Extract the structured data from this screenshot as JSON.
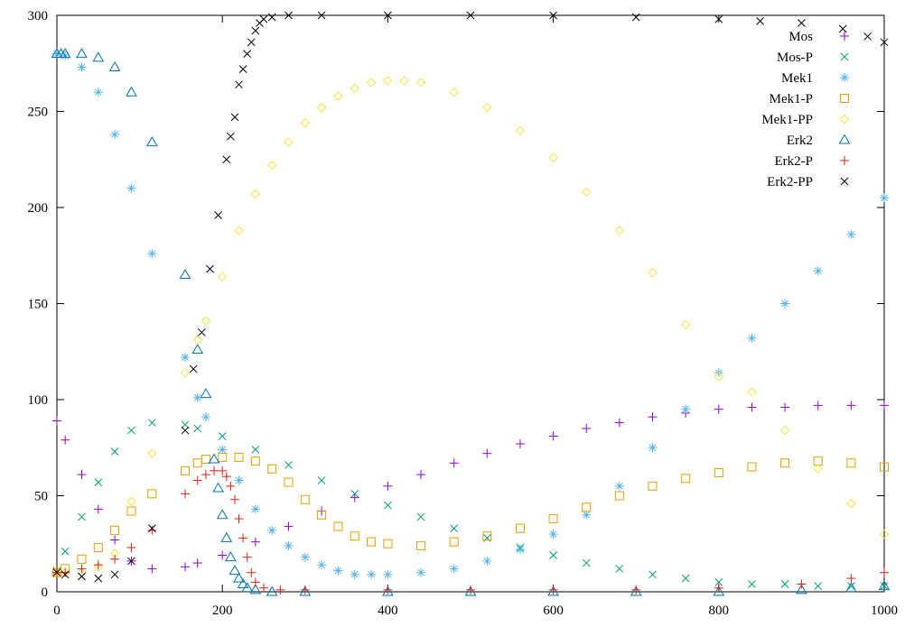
{
  "chart_data": {
    "type": "scatter",
    "title": "",
    "xlabel": "",
    "ylabel": "",
    "xlim": [
      0,
      1000
    ],
    "ylim": [
      0,
      300
    ],
    "grid": false,
    "legend_position": "top-right",
    "x_ticks": [
      0,
      200,
      400,
      600,
      800,
      1000
    ],
    "y_ticks": [
      0,
      50,
      100,
      150,
      200,
      250,
      300
    ],
    "x_tick_labels": [
      "0",
      "200",
      "400",
      "600",
      "800",
      "1000"
    ],
    "y_tick_labels": [
      "0",
      "50",
      "100",
      "150",
      "200",
      "250",
      "300"
    ],
    "series": [
      {
        "name": "Mos",
        "color": "#9400d3",
        "marker": "plus-x",
        "x": [
          0,
          10,
          30,
          50,
          70,
          90,
          115,
          155,
          170,
          200,
          240,
          280,
          320,
          360,
          400,
          440,
          480,
          520,
          560,
          600,
          640,
          680,
          720,
          760,
          800,
          840,
          880,
          920,
          960,
          1000
        ],
        "y": [
          89,
          79,
          61,
          43,
          27,
          16,
          12,
          13,
          15,
          19,
          26,
          34,
          42,
          49,
          55,
          61,
          67,
          72,
          77,
          81,
          85,
          88,
          91,
          93,
          95,
          96,
          96,
          97,
          97,
          97
        ]
      },
      {
        "name": "Mos-P",
        "color": "#009e73",
        "marker": "x",
        "x": [
          0,
          10,
          30,
          50,
          70,
          90,
          115,
          155,
          170,
          200,
          240,
          280,
          320,
          360,
          400,
          440,
          480,
          520,
          560,
          600,
          640,
          680,
          720,
          760,
          800,
          840,
          880,
          920,
          960,
          1000
        ],
        "y": [
          11,
          21,
          39,
          57,
          73,
          84,
          88,
          87,
          85,
          81,
          74,
          66,
          58,
          51,
          45,
          39,
          33,
          28,
          23,
          19,
          15,
          12,
          9,
          7,
          5,
          4,
          4,
          3,
          3,
          3
        ]
      },
      {
        "name": "Mek1",
        "color": "#56b4e9",
        "marker": "asterisk",
        "x": [
          0,
          10,
          30,
          50,
          70,
          90,
          115,
          155,
          170,
          180,
          200,
          220,
          240,
          260,
          280,
          300,
          320,
          340,
          360,
          380,
          400,
          440,
          480,
          520,
          560,
          600,
          640,
          680,
          720,
          760,
          800,
          840,
          880,
          920,
          960,
          1000
        ],
        "y": [
          280,
          279,
          273,
          260,
          238,
          210,
          176,
          122,
          101,
          91,
          74,
          58,
          43,
          32,
          24,
          18,
          14,
          11,
          9,
          9,
          9,
          10,
          12,
          16,
          22,
          30,
          40,
          55,
          75,
          95,
          114,
          132,
          150,
          167,
          186,
          205
        ]
      },
      {
        "name": "Mek1-P",
        "color": "#e69f00",
        "marker": "square",
        "x": [
          0,
          10,
          30,
          50,
          70,
          90,
          115,
          155,
          170,
          180,
          200,
          220,
          240,
          260,
          280,
          300,
          320,
          340,
          360,
          380,
          400,
          440,
          480,
          520,
          560,
          600,
          640,
          680,
          720,
          760,
          800,
          840,
          880,
          920,
          960,
          1000
        ],
        "y": [
          10,
          12,
          17,
          23,
          32,
          42,
          51,
          63,
          67,
          69,
          70,
          70,
          68,
          64,
          57,
          48,
          40,
          34,
          29,
          26,
          25,
          24,
          26,
          29,
          33,
          38,
          44,
          50,
          55,
          59,
          62,
          65,
          67,
          68,
          67,
          65
        ]
      },
      {
        "name": "Mek1-PP",
        "color": "#f0e442",
        "marker": "diamond",
        "x": [
          0,
          10,
          30,
          50,
          70,
          90,
          115,
          155,
          170,
          180,
          200,
          220,
          240,
          260,
          280,
          300,
          320,
          340,
          360,
          380,
          400,
          420,
          440,
          480,
          520,
          560,
          600,
          640,
          680,
          720,
          760,
          800,
          840,
          880,
          920,
          960,
          1000
        ],
        "y": [
          10,
          10,
          10,
          13,
          20,
          47,
          72,
          114,
          131,
          141,
          164,
          188,
          207,
          222,
          234,
          244,
          252,
          258,
          262,
          265,
          266,
          266,
          265,
          260,
          252,
          240,
          226,
          208,
          188,
          166,
          139,
          112,
          104,
          84,
          64,
          46,
          30
        ]
      },
      {
        "name": "Erk2",
        "color": "#0072b2",
        "marker": "triangle",
        "x": [
          0,
          5,
          10,
          30,
          50,
          70,
          90,
          115,
          155,
          170,
          180,
          190,
          195,
          200,
          205,
          210,
          215,
          220,
          225,
          230,
          240,
          260,
          300,
          400,
          500,
          600,
          700,
          800,
          900,
          960,
          1000
        ],
        "y": [
          280,
          280,
          280,
          280,
          278,
          273,
          260,
          234,
          165,
          126,
          103,
          69,
          54,
          40,
          28,
          18,
          11,
          7,
          4,
          2,
          1,
          0,
          0,
          0,
          0,
          0,
          0,
          0,
          1,
          2,
          3
        ]
      },
      {
        "name": "Erk2-P",
        "color": "#e51e10",
        "marker": "plus",
        "x": [
          0,
          10,
          30,
          50,
          70,
          90,
          115,
          155,
          170,
          180,
          190,
          200,
          205,
          210,
          215,
          220,
          225,
          230,
          235,
          240,
          250,
          270,
          300,
          400,
          500,
          600,
          700,
          800,
          900,
          960,
          1000
        ],
        "y": [
          10,
          10,
          12,
          14,
          17,
          23,
          32,
          51,
          58,
          61,
          63,
          63,
          60,
          55,
          48,
          38,
          28,
          18,
          10,
          5,
          2,
          1,
          1,
          1,
          1,
          1,
          1,
          2,
          4,
          7,
          10
        ]
      },
      {
        "name": "Erk2-PP",
        "color": "#000000",
        "marker": "x",
        "x": [
          0,
          10,
          30,
          50,
          70,
          90,
          115,
          155,
          165,
          175,
          185,
          195,
          205,
          210,
          215,
          220,
          225,
          230,
          235,
          240,
          245,
          250,
          260,
          280,
          320,
          400,
          500,
          600,
          700,
          800,
          850,
          900,
          950,
          980,
          1000
        ],
        "y": [
          10,
          9,
          8,
          7,
          9,
          16,
          33,
          84,
          116,
          135,
          168,
          196,
          225,
          237,
          247,
          264,
          272,
          280,
          286,
          292,
          296,
          298,
          299,
          300,
          300,
          300,
          300,
          300,
          299,
          298,
          297,
          296,
          293,
          289,
          286
        ]
      }
    ]
  }
}
